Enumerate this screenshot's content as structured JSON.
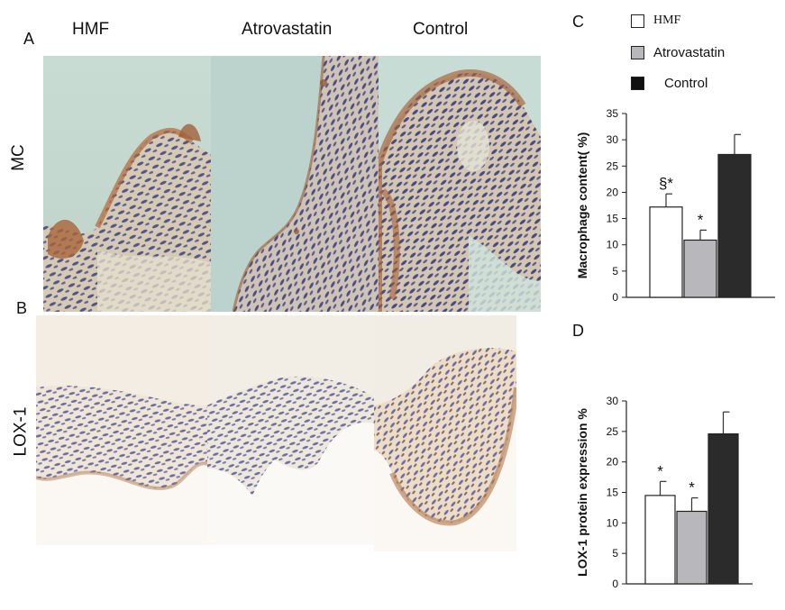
{
  "panels": {
    "a_label": "A",
    "b_label": "B",
    "c_label": "C",
    "d_label": "D"
  },
  "columns": [
    "HMF",
    "Atrovastatin",
    "Control"
  ],
  "rows": [
    "MC",
    "LOX-1"
  ],
  "legend": [
    {
      "name": "HMF",
      "color": "#ffffff"
    },
    {
      "name": "Atrovastatin",
      "color": "#b8b8bc"
    },
    {
      "name": "Control",
      "color": "#2b2b2b"
    }
  ],
  "colors": {
    "tissue_bg_mc": "#c9dcd4",
    "tissue_stain": "#9b5a32",
    "nuclei": "#3d3f7a",
    "lox_bg": "#fbf8f3"
  },
  "chart_data": [
    {
      "type": "bar",
      "panel": "C",
      "categories": [
        "HMF",
        "Atrovastatin",
        "Control"
      ],
      "values": [
        17.2,
        10.9,
        27.2
      ],
      "errors": [
        2.5,
        1.9,
        3.8
      ],
      "annotations": [
        "§*",
        "*",
        ""
      ],
      "ylabel": "Macrophage  content( %)",
      "ylim": [
        0,
        35
      ],
      "yticks": [
        0,
        5,
        10,
        15,
        20,
        25,
        30,
        35
      ],
      "colors": [
        "#ffffff",
        "#b8b8bc",
        "#2b2b2b"
      ]
    },
    {
      "type": "bar",
      "panel": "D",
      "categories": [
        "HMF",
        "Atrovastatin",
        "Control"
      ],
      "values": [
        14.5,
        11.9,
        24.6
      ],
      "errors": [
        2.3,
        2.2,
        3.6
      ],
      "annotations": [
        "*",
        "*",
        ""
      ],
      "ylabel": "LOX-1 protein expression %",
      "ylim": [
        0,
        30
      ],
      "yticks": [
        0,
        5,
        10,
        15,
        20,
        25,
        30
      ],
      "colors": [
        "#ffffff",
        "#b8b8bc",
        "#2b2b2b"
      ]
    }
  ]
}
